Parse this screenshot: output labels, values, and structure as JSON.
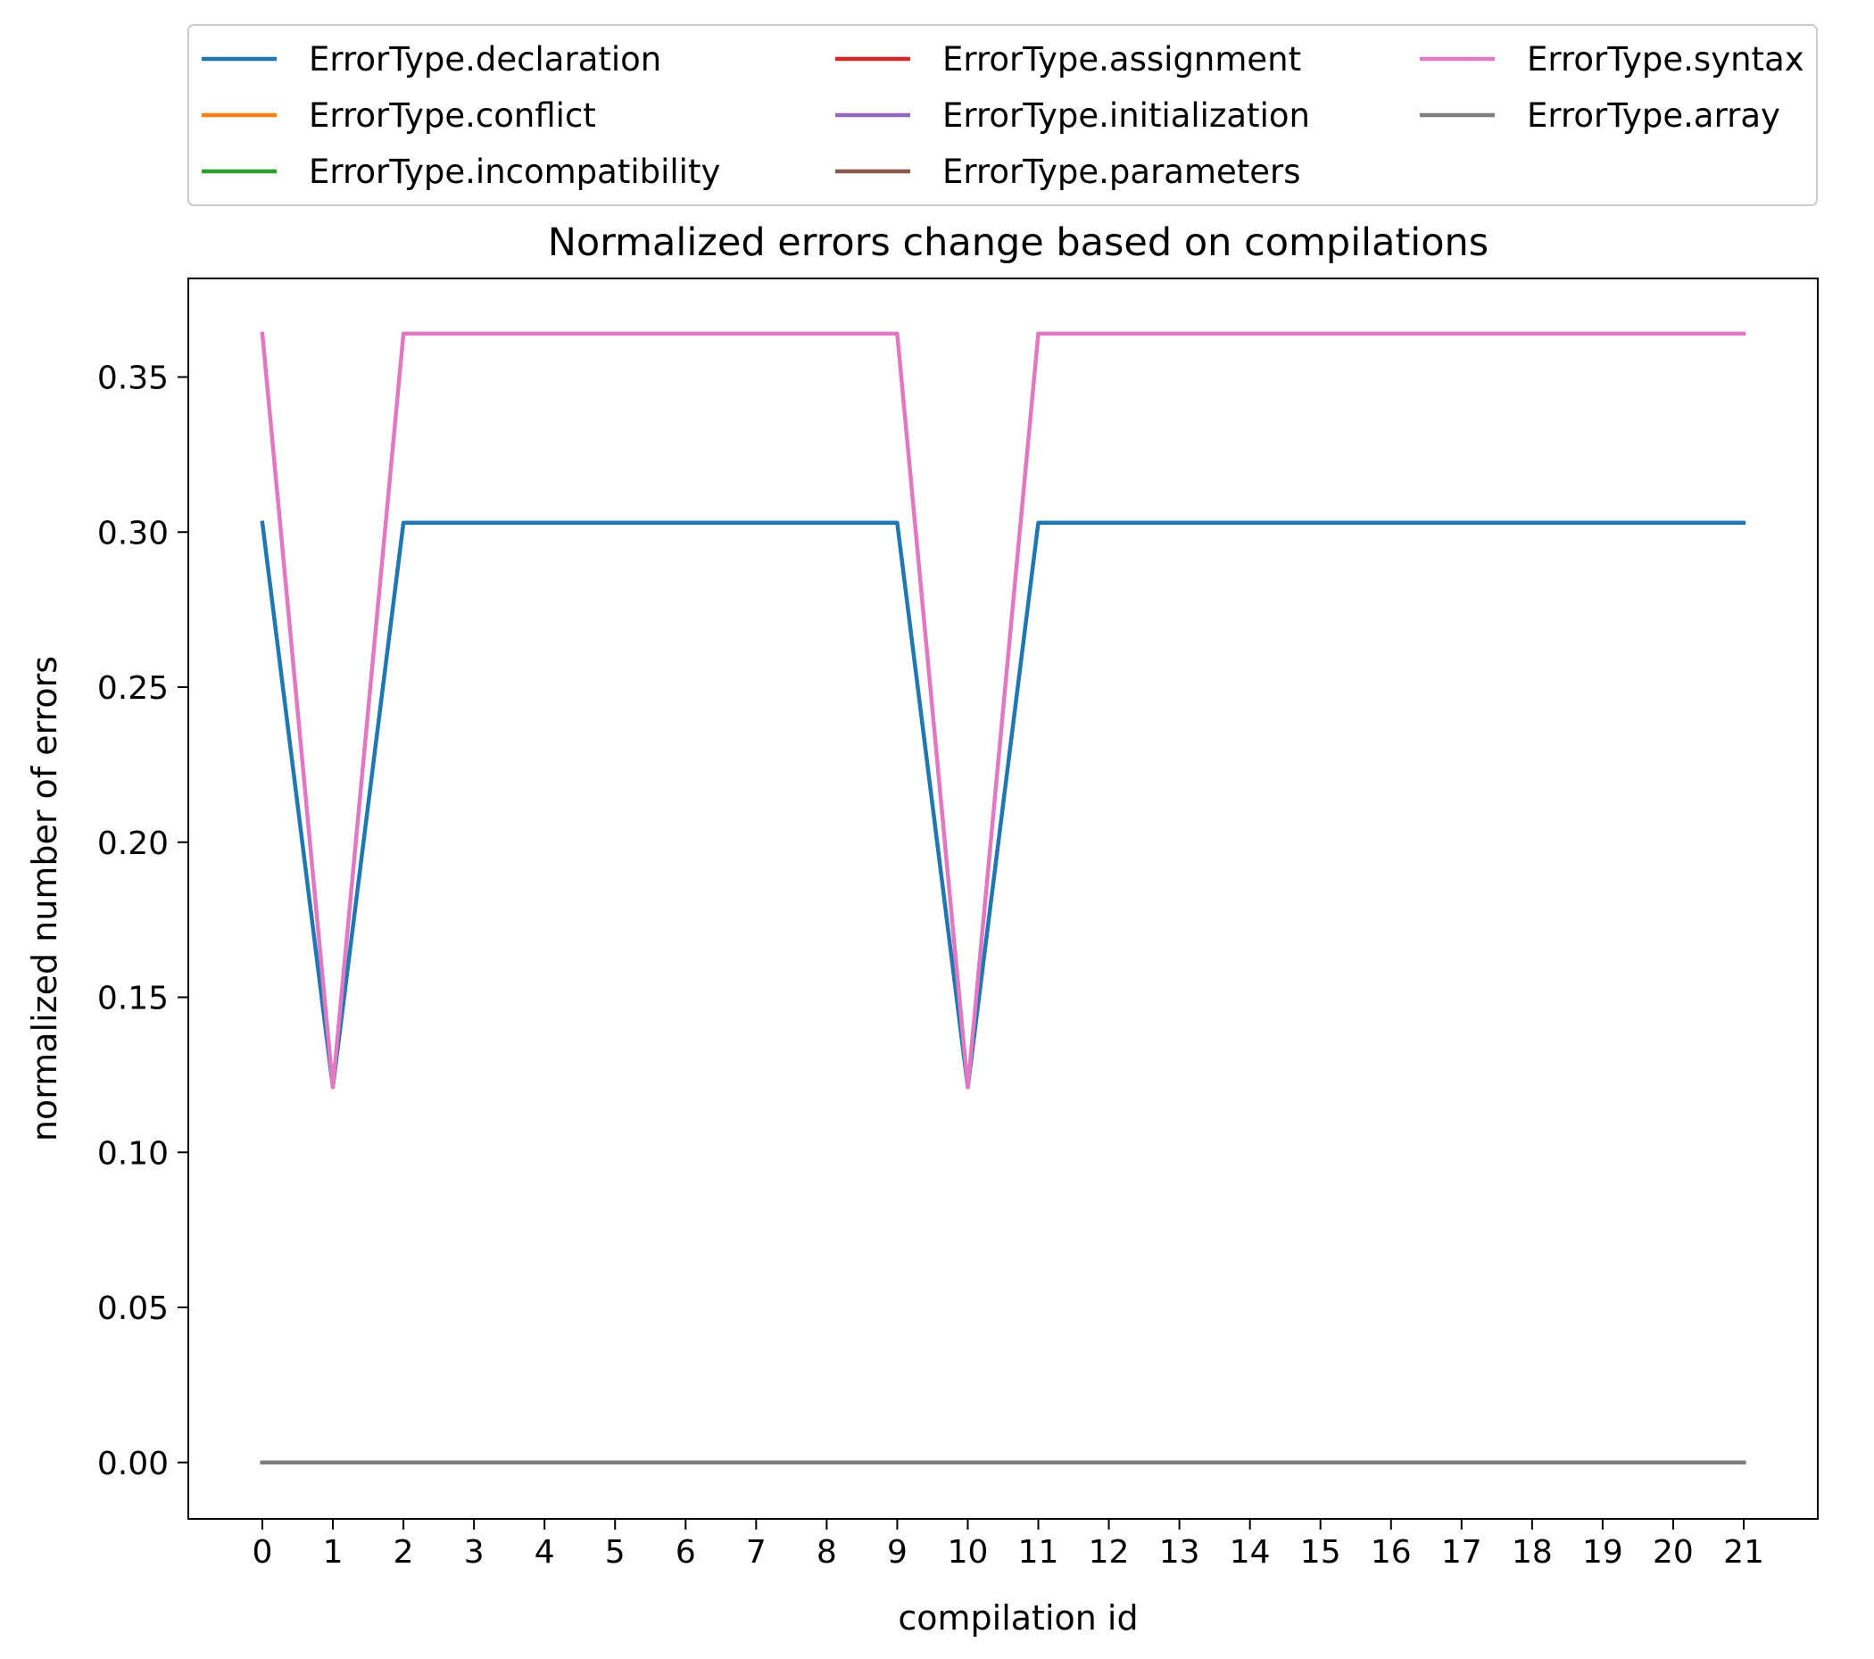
{
  "chart_data": {
    "type": "line",
    "title": "Normalized errors change based on compilations",
    "xlabel": "compilation id",
    "ylabel": "normalized number of errors",
    "x": [
      0,
      1,
      2,
      3,
      4,
      5,
      6,
      7,
      8,
      9,
      10,
      11,
      12,
      13,
      14,
      15,
      16,
      17,
      18,
      19,
      20,
      21
    ],
    "xlim": [
      -1.05,
      22.05
    ],
    "ylim": [
      -0.0182,
      0.3818
    ],
    "xticks": [
      0,
      1,
      2,
      3,
      4,
      5,
      6,
      7,
      8,
      9,
      10,
      11,
      12,
      13,
      14,
      15,
      16,
      17,
      18,
      19,
      20,
      21
    ],
    "yticks": [
      0.0,
      0.05,
      0.1,
      0.15,
      0.2,
      0.25,
      0.3,
      0.35
    ],
    "ytick_labels": [
      "0.00",
      "0.05",
      "0.10",
      "0.15",
      "0.20",
      "0.25",
      "0.30",
      "0.35"
    ],
    "grid": false,
    "legend_placement": "top, outside axes, 3 columns",
    "series": [
      {
        "name": "ErrorType.declaration",
        "color": "#1f77b4",
        "values": [
          0.303,
          0.121,
          0.303,
          0.303,
          0.303,
          0.303,
          0.303,
          0.303,
          0.303,
          0.303,
          0.121,
          0.303,
          0.303,
          0.303,
          0.303,
          0.303,
          0.303,
          0.303,
          0.303,
          0.303,
          0.303,
          0.303
        ]
      },
      {
        "name": "ErrorType.conflict",
        "color": "#ff7f0e",
        "values": [
          0,
          0,
          0,
          0,
          0,
          0,
          0,
          0,
          0,
          0,
          0,
          0,
          0,
          0,
          0,
          0,
          0,
          0,
          0,
          0,
          0,
          0
        ]
      },
      {
        "name": "ErrorType.incompatibility",
        "color": "#2ca02c",
        "values": [
          0,
          0,
          0,
          0,
          0,
          0,
          0,
          0,
          0,
          0,
          0,
          0,
          0,
          0,
          0,
          0,
          0,
          0,
          0,
          0,
          0,
          0
        ]
      },
      {
        "name": "ErrorType.assignment",
        "color": "#d62728",
        "values": [
          0,
          0,
          0,
          0,
          0,
          0,
          0,
          0,
          0,
          0,
          0,
          0,
          0,
          0,
          0,
          0,
          0,
          0,
          0,
          0,
          0,
          0
        ]
      },
      {
        "name": "ErrorType.initialization",
        "color": "#9467bd",
        "values": [
          0,
          0,
          0,
          0,
          0,
          0,
          0,
          0,
          0,
          0,
          0,
          0,
          0,
          0,
          0,
          0,
          0,
          0,
          0,
          0,
          0,
          0
        ]
      },
      {
        "name": "ErrorType.parameters",
        "color": "#8c564b",
        "values": [
          0,
          0,
          0,
          0,
          0,
          0,
          0,
          0,
          0,
          0,
          0,
          0,
          0,
          0,
          0,
          0,
          0,
          0,
          0,
          0,
          0,
          0
        ]
      },
      {
        "name": "ErrorType.syntax",
        "color": "#e377c2",
        "values": [
          0.364,
          0.121,
          0.364,
          0.364,
          0.364,
          0.364,
          0.364,
          0.364,
          0.364,
          0.364,
          0.121,
          0.364,
          0.364,
          0.364,
          0.364,
          0.364,
          0.364,
          0.364,
          0.364,
          0.364,
          0.364,
          0.364
        ]
      },
      {
        "name": "ErrorType.array",
        "color": "#7f7f7f",
        "values": [
          0,
          0,
          0,
          0,
          0,
          0,
          0,
          0,
          0,
          0,
          0,
          0,
          0,
          0,
          0,
          0,
          0,
          0,
          0,
          0,
          0,
          0
        ]
      }
    ]
  }
}
